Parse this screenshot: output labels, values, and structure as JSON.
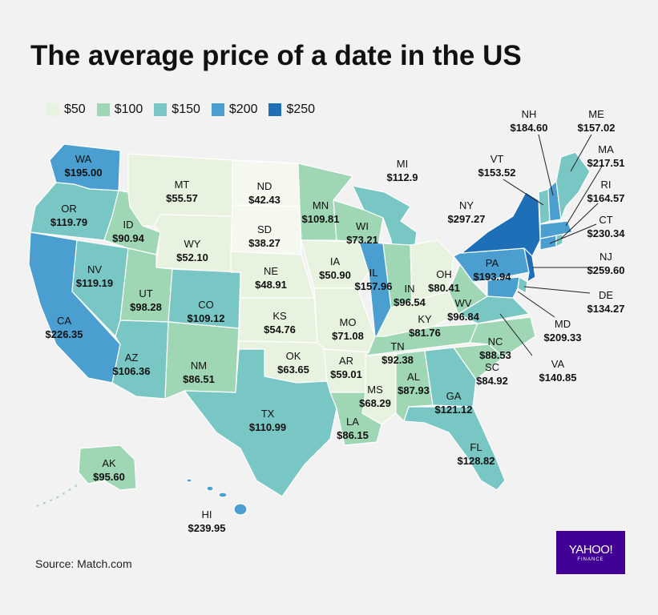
{
  "title": "The average price of a date in the US",
  "source": "Source: Match.com",
  "logo": {
    "line1": "YAHOO!",
    "line2": "FINANCE"
  },
  "colors": {
    "c50": "#e8f3df",
    "c100": "#9fd6b4",
    "c150": "#79c7c4",
    "c200": "#4a9fd0",
    "c250": "#1f6fb8",
    "water": "#f2f2f3",
    "border": "#ffffff"
  },
  "legend": [
    {
      "label": "$50",
      "color": "#e8f3df"
    },
    {
      "label": "$100",
      "color": "#9fd6b4"
    },
    {
      "label": "$150",
      "color": "#79c7c4"
    },
    {
      "label": "$200",
      "color": "#4a9fd0"
    },
    {
      "label": "$250",
      "color": "#1f6fb8"
    }
  ],
  "states": [
    {
      "abbr": "WA",
      "price": "$195.00"
    },
    {
      "abbr": "OR",
      "price": "$119.79"
    },
    {
      "abbr": "CA",
      "price": "$226.35"
    },
    {
      "abbr": "NV",
      "price": "$119.19"
    },
    {
      "abbr": "ID",
      "price": "$90.94"
    },
    {
      "abbr": "MT",
      "price": "$55.57"
    },
    {
      "abbr": "WY",
      "price": "$52.10"
    },
    {
      "abbr": "UT",
      "price": "$98.28"
    },
    {
      "abbr": "AZ",
      "price": "$106.36"
    },
    {
      "abbr": "CO",
      "price": "$109.12"
    },
    {
      "abbr": "NM",
      "price": "$86.51"
    },
    {
      "abbr": "ND",
      "price": "$42.43"
    },
    {
      "abbr": "SD",
      "price": "$38.27"
    },
    {
      "abbr": "NE",
      "price": "$48.91"
    },
    {
      "abbr": "KS",
      "price": "$54.76"
    },
    {
      "abbr": "OK",
      "price": "$63.65"
    },
    {
      "abbr": "TX",
      "price": "$110.99"
    },
    {
      "abbr": "MN",
      "price": "$109.81"
    },
    {
      "abbr": "IA",
      "price": "$50.90"
    },
    {
      "abbr": "MO",
      "price": "$71.08"
    },
    {
      "abbr": "AR",
      "price": "$59.01"
    },
    {
      "abbr": "LA",
      "price": "$86.15"
    },
    {
      "abbr": "WI",
      "price": "$73.21"
    },
    {
      "abbr": "IL",
      "price": "$157.96"
    },
    {
      "abbr": "MI",
      "price": "$112.9"
    },
    {
      "abbr": "IN",
      "price": "$96.54"
    },
    {
      "abbr": "OH",
      "price": "$80.41"
    },
    {
      "abbr": "KY",
      "price": "$81.76"
    },
    {
      "abbr": "TN",
      "price": "$92.38"
    },
    {
      "abbr": "MS",
      "price": "$68.29"
    },
    {
      "abbr": "AL",
      "price": "$87.93"
    },
    {
      "abbr": "GA",
      "price": "$121.12"
    },
    {
      "abbr": "FL",
      "price": "$128.82"
    },
    {
      "abbr": "SC",
      "price": "$84.92"
    },
    {
      "abbr": "NC",
      "price": "$88.53"
    },
    {
      "abbr": "VA",
      "price": "$140.85"
    },
    {
      "abbr": "WV",
      "price": "$96.84"
    },
    {
      "abbr": "PA",
      "price": "$193.94"
    },
    {
      "abbr": "NY",
      "price": "$297.27"
    },
    {
      "abbr": "VT",
      "price": "$153.52"
    },
    {
      "abbr": "NH",
      "price": "$184.60"
    },
    {
      "abbr": "ME",
      "price": "$157.02"
    },
    {
      "abbr": "MA",
      "price": "$217.51"
    },
    {
      "abbr": "RI",
      "price": "$164.57"
    },
    {
      "abbr": "CT",
      "price": "$230.34"
    },
    {
      "abbr": "NJ",
      "price": "$259.60"
    },
    {
      "abbr": "DE",
      "price": "$134.27"
    },
    {
      "abbr": "MD",
      "price": "$209.33"
    },
    {
      "abbr": "AK",
      "price": "$95.60"
    },
    {
      "abbr": "HI",
      "price": "$239.95"
    }
  ]
}
